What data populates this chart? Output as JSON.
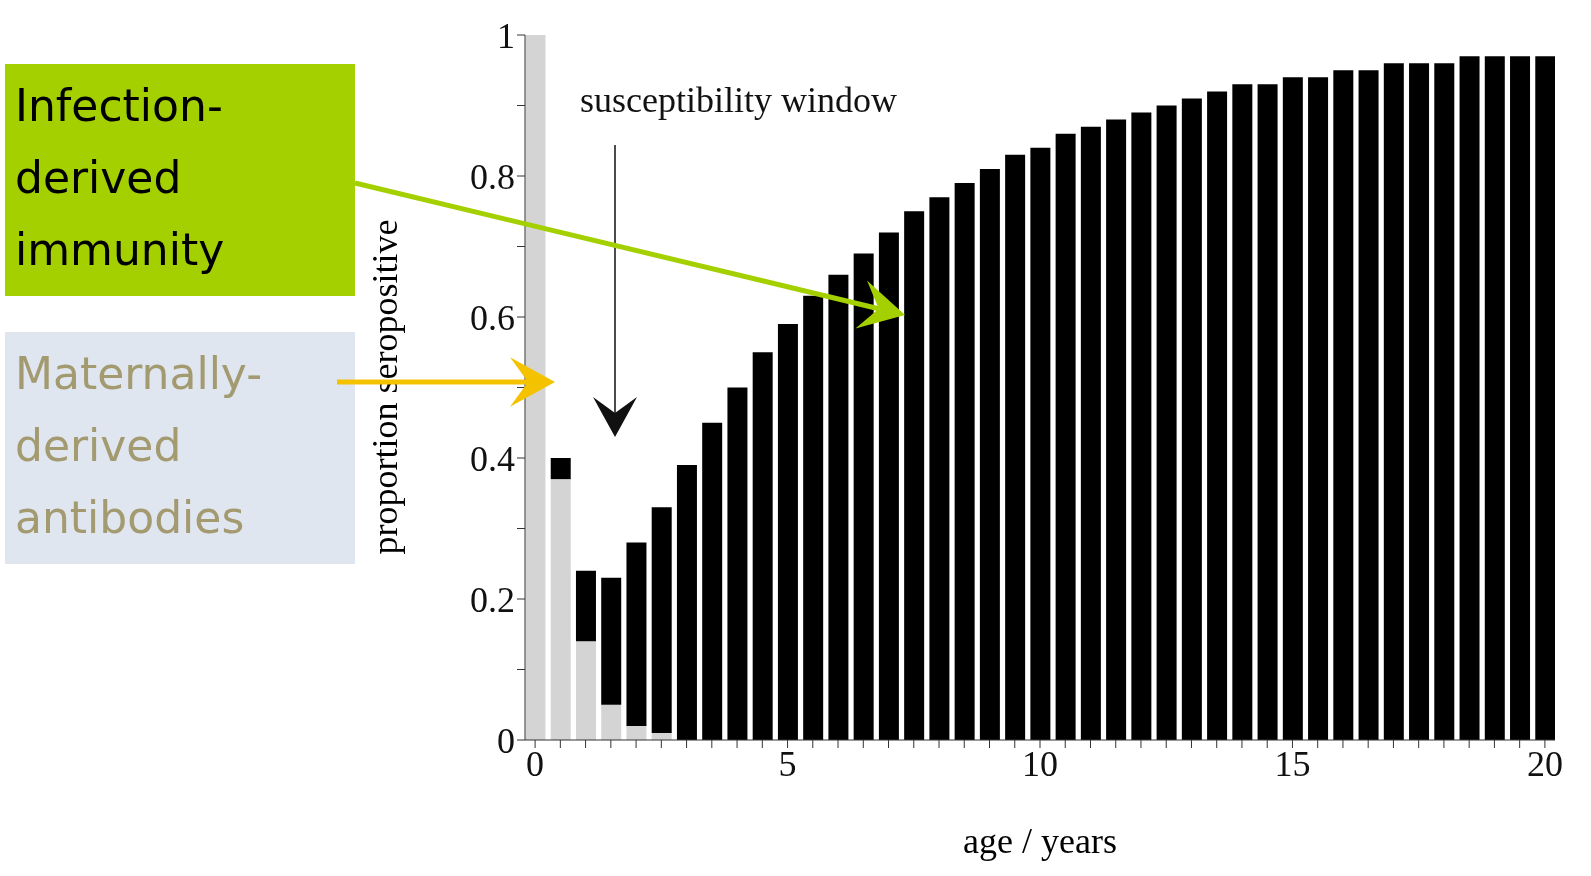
{
  "chart_data": {
    "type": "bar",
    "stacked": true,
    "xlabel": "age / years",
    "ylabel": "proportion seropositive",
    "x": [
      0,
      0.5,
      1,
      1.5,
      2,
      2.5,
      3,
      3.5,
      4,
      4.5,
      5,
      5.5,
      6,
      6.5,
      7,
      7.5,
      8,
      8.5,
      9,
      9.5,
      10,
      10.5,
      11,
      11.5,
      12,
      12.5,
      13,
      13.5,
      14,
      14.5,
      15,
      15.5,
      16,
      16.5,
      17,
      17.5,
      18,
      18.5,
      19,
      19.5,
      20
    ],
    "series": [
      {
        "color": "#d4d4d4",
        "values": [
          1.0,
          0.37,
          0.14,
          0.05,
          0.02,
          0.01,
          0,
          0,
          0,
          0,
          0,
          0,
          0,
          0,
          0,
          0,
          0,
          0,
          0,
          0,
          0,
          0,
          0,
          0,
          0,
          0,
          0,
          0,
          0,
          0,
          0,
          0,
          0,
          0,
          0,
          0,
          0,
          0,
          0,
          0,
          0
        ]
      },
      {
        "color": "#000000",
        "values": [
          0,
          0.03,
          0.1,
          0.18,
          0.26,
          0.32,
          0.39,
          0.45,
          0.5,
          0.55,
          0.59,
          0.63,
          0.66,
          0.69,
          0.72,
          0.75,
          0.77,
          0.79,
          0.81,
          0.83,
          0.84,
          0.86,
          0.87,
          0.88,
          0.89,
          0.9,
          0.91,
          0.92,
          0.93,
          0.93,
          0.94,
          0.94,
          0.95,
          0.95,
          0.96,
          0.96,
          0.96,
          0.97,
          0.97,
          0.97,
          0.97
        ]
      }
    ],
    "xlim": [
      -0.2,
      20.2
    ],
    "xticks": [
      0,
      {
        "value": 0.5,
        "label": null
      },
      {
        "value": 1,
        "label": null
      },
      {
        "value": 1.5,
        "label": null
      },
      {
        "value": 2,
        "label": null
      },
      {
        "value": 2.5,
        "label": null
      },
      {
        "value": 3,
        "label": null
      },
      {
        "value": 3.5,
        "label": null
      },
      {
        "value": 4,
        "label": null
      },
      {
        "value": 4.5,
        "label": null
      },
      5,
      {
        "value": 5.5,
        "label": null
      },
      {
        "value": 6,
        "label": null
      },
      {
        "value": 6.5,
        "label": null
      },
      {
        "value": 7,
        "label": null
      },
      {
        "value": 7.5,
        "label": null
      },
      {
        "value": 8,
        "label": null
      },
      {
        "value": 8.5,
        "label": null
      },
      {
        "value": 9,
        "label": null
      },
      {
        "value": 9.5,
        "label": null
      },
      10,
      {
        "value": 10.5,
        "label": null
      },
      {
        "value": 11,
        "label": null
      },
      {
        "value": 11.5,
        "label": null
      },
      {
        "value": 12,
        "label": null
      },
      {
        "value": 12.5,
        "label": null
      },
      {
        "value": 13,
        "label": null
      },
      {
        "value": 13.5,
        "label": null
      },
      {
        "value": 14,
        "label": null
      },
      {
        "value": 14.5,
        "label": null
      },
      15,
      {
        "value": 15.5,
        "label": null
      },
      {
        "value": 16,
        "label": null
      },
      {
        "value": 16.5,
        "label": null
      },
      {
        "value": 17,
        "label": null
      },
      {
        "value": 17.5,
        "label": null
      },
      {
        "value": 18,
        "label": null
      },
      {
        "value": 18.5,
        "label": null
      },
      {
        "value": 19,
        "label": null
      },
      {
        "value": 19.5,
        "label": null
      },
      20
    ],
    "ylim": [
      0,
      1
    ],
    "yticks": [
      0,
      {
        "value": 0.1,
        "label": null
      },
      0.2,
      {
        "value": 0.3,
        "label": null
      },
      0.4,
      {
        "value": 0.5,
        "label": null
      },
      0.6,
      {
        "value": 0.7,
        "label": null
      },
      0.8,
      {
        "value": 0.9,
        "label": null
      },
      1
    ],
    "grid": false,
    "legend": false,
    "annotations": [
      "susceptibility window",
      "Infection-derived immunity",
      "Maternally-derived antibodies"
    ]
  }
}
